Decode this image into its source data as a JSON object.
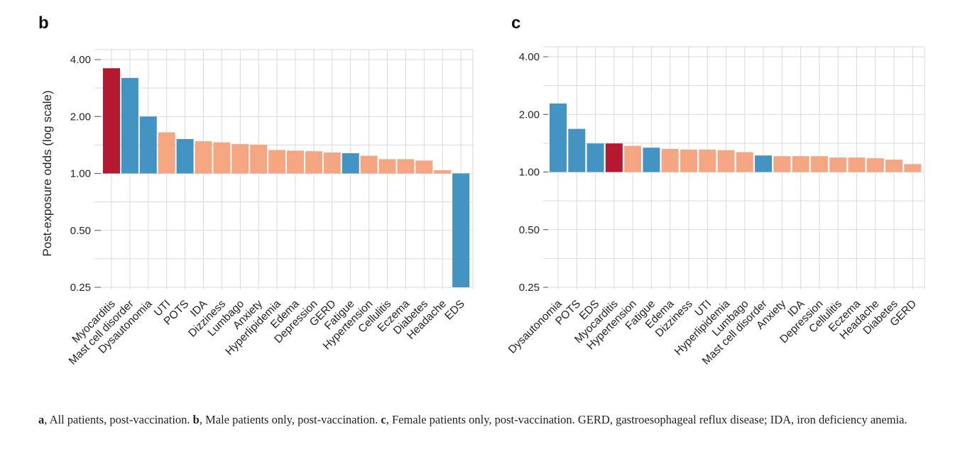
{
  "colors": {
    "red": "#b5192f",
    "blue": "#4393c3",
    "salmon": "#f4a582",
    "grid": "#d9d9d9"
  },
  "chart_data": [
    {
      "panel": "b",
      "type": "bar",
      "ylabel": "Post-exposure odds (log scale)",
      "yscale": "log2",
      "ylim": [
        0.25,
        4.0
      ],
      "yticks": [
        "4.00",
        "2.00",
        "1.00",
        "0.50",
        "0.25"
      ],
      "grid": true,
      "categories": [
        "Myocarditis",
        "Mast cell disorder",
        "Dysautonomia",
        "UTI",
        "POTS",
        "IDA",
        "Dizziness",
        "Lumbago",
        "Anxiety",
        "Hyperlipidemia",
        "Edema",
        "Depression",
        "GERD",
        "Fatigue",
        "Hypertension",
        "Cellulitis",
        "Eczema",
        "Diabetes",
        "Headache",
        "EDS"
      ],
      "values": [
        3.6,
        3.2,
        2.0,
        1.65,
        1.52,
        1.48,
        1.46,
        1.43,
        1.42,
        1.33,
        1.32,
        1.31,
        1.29,
        1.28,
        1.24,
        1.19,
        1.19,
        1.17,
        1.04,
        0.25
      ],
      "bar_colors": [
        "red",
        "blue",
        "blue",
        "salmon",
        "blue",
        "salmon",
        "salmon",
        "salmon",
        "salmon",
        "salmon",
        "salmon",
        "salmon",
        "salmon",
        "blue",
        "salmon",
        "salmon",
        "salmon",
        "salmon",
        "salmon",
        "blue"
      ]
    },
    {
      "panel": "c",
      "type": "bar",
      "ylabel": "",
      "yscale": "log2",
      "ylim": [
        0.25,
        4.0
      ],
      "yticks": [
        "4.00",
        "2.00",
        "1.00",
        "0.50",
        "0.25"
      ],
      "grid": true,
      "categories": [
        "Dysautonomia",
        "POTS",
        "EDS",
        "Myocarditis",
        "Hypertension",
        "Fatigue",
        "Edema",
        "Dizziness",
        "UTI",
        "Hyperlipidemia",
        "Lumbago",
        "Mast cell disorder",
        "Anxiety",
        "IDA",
        "Depression",
        "Cellulitis",
        "Eczema",
        "Headache",
        "Diabetes",
        "GERD"
      ],
      "values": [
        2.28,
        1.68,
        1.41,
        1.41,
        1.37,
        1.34,
        1.32,
        1.31,
        1.31,
        1.3,
        1.27,
        1.22,
        1.21,
        1.21,
        1.21,
        1.19,
        1.19,
        1.18,
        1.16,
        1.1
      ],
      "bar_colors": [
        "blue",
        "blue",
        "blue",
        "red",
        "salmon",
        "blue",
        "salmon",
        "salmon",
        "salmon",
        "salmon",
        "salmon",
        "blue",
        "salmon",
        "salmon",
        "salmon",
        "salmon",
        "salmon",
        "salmon",
        "salmon",
        "salmon"
      ]
    }
  ],
  "caption": {
    "a_letter": "a",
    "a_text": ", All patients, post-vaccination. ",
    "b_letter": "b",
    "b_text": ", Male patients only, post-vaccination. ",
    "c_letter": "c",
    "c_text": ", Female patients only, post-vaccination. GERD, gastroesophageal reflux disease; IDA, iron deficiency anemia."
  }
}
